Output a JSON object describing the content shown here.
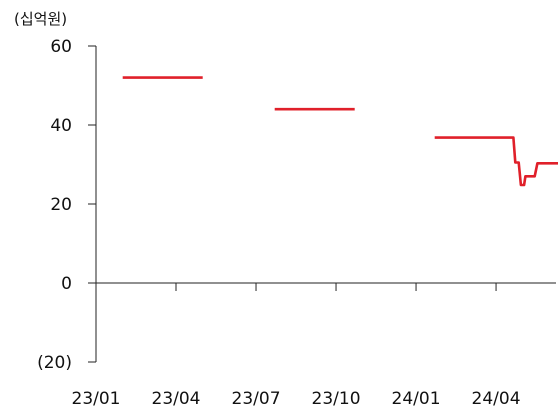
{
  "chart_data": {
    "type": "line",
    "unit_label": "(십억원)",
    "ylim": [
      -20,
      60
    ],
    "y_ticks": [
      -20,
      0,
      20,
      40,
      60
    ],
    "y_tick_labels": [
      "(20)",
      "0",
      "20",
      "40",
      "60"
    ],
    "x_range": [
      0,
      17.7
    ],
    "x_tick_positions": [
      0,
      3,
      6,
      9,
      12,
      15
    ],
    "x_tick_labels": [
      "23/01",
      "23/04",
      "23/07",
      "23/10",
      "24/01",
      "24/04"
    ],
    "grid": false,
    "color": "#e0202a",
    "series": [
      {
        "segments": [
          [
            [
              1.0,
              52
            ],
            [
              4.0,
              52
            ]
          ],
          [
            [
              6.7,
              44
            ],
            [
              9.7,
              44
            ]
          ],
          [
            [
              12.7,
              36.8
            ],
            [
              15.5,
              36.8
            ],
            [
              15.65,
              36.8
            ],
            [
              15.72,
              30.5
            ],
            [
              15.85,
              30.5
            ],
            [
              15.93,
              24.8
            ],
            [
              16.05,
              24.8
            ],
            [
              16.1,
              27
            ],
            [
              16.45,
              27
            ],
            [
              16.55,
              30.3
            ],
            [
              17.7,
              30.3
            ]
          ]
        ]
      }
    ]
  }
}
